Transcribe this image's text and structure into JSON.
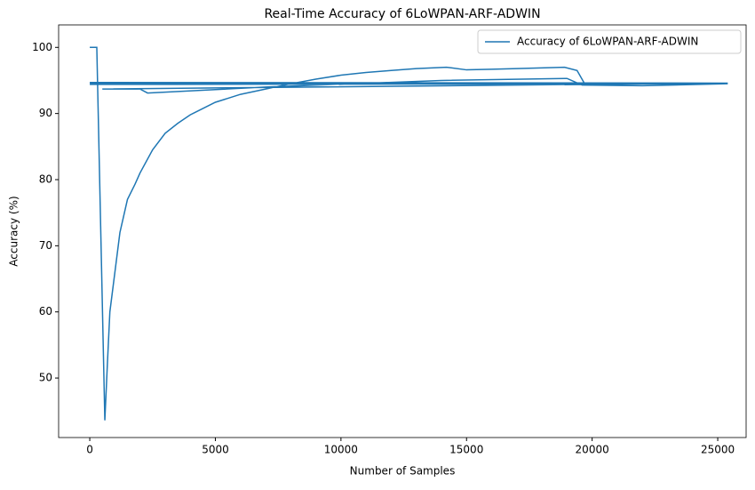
{
  "chart_data": {
    "type": "line",
    "title": "Real-Time Accuracy of 6LoWPAN-ARF-ADWIN",
    "xlabel": "Number of Samples",
    "ylabel": "Accuracy (%)",
    "x": [
      0,
      280,
      600,
      700,
      800,
      1000,
      1200,
      1500,
      1800,
      2000,
      2500,
      3000,
      3500,
      4000,
      5000,
      6000,
      7000,
      8000,
      9000,
      10000,
      11000,
      12000,
      13000,
      14200,
      15000,
      16000,
      17000,
      18900,
      19400,
      19700,
      0,
      25400,
      0,
      25400,
      500,
      2000,
      2300,
      7000,
      14000,
      19000,
      19600,
      22000,
      25400,
      0,
      25400
    ],
    "series": [
      {
        "name": "Accuracy of 6LoWPAN-ARF-ADWIN",
        "color": "#1f77b4",
        "values": [
          100,
          100,
          43.6,
          52,
          60,
          66,
          72,
          77,
          79.3,
          81,
          84.5,
          87,
          88.5,
          89.8,
          91.7,
          92.9,
          93.7,
          94.5,
          95.2,
          95.8,
          96.2,
          96.5,
          96.8,
          97,
          96.6,
          96.7,
          96.8,
          97,
          96.5,
          94.5,
          94.6,
          94.5,
          94.7,
          94.6,
          93.7,
          93.7,
          93.1,
          94,
          95,
          95.3,
          94.3,
          94.2,
          94.5,
          94.4,
          94.6
        ]
      }
    ],
    "xlim": [
      -1240,
      26130
    ],
    "ylim": [
      41,
      103.4
    ],
    "xticks": [
      0,
      5000,
      10000,
      15000,
      20000,
      25000
    ],
    "yticks": [
      50,
      60,
      70,
      80,
      90,
      100
    ],
    "legend": "upper right"
  }
}
